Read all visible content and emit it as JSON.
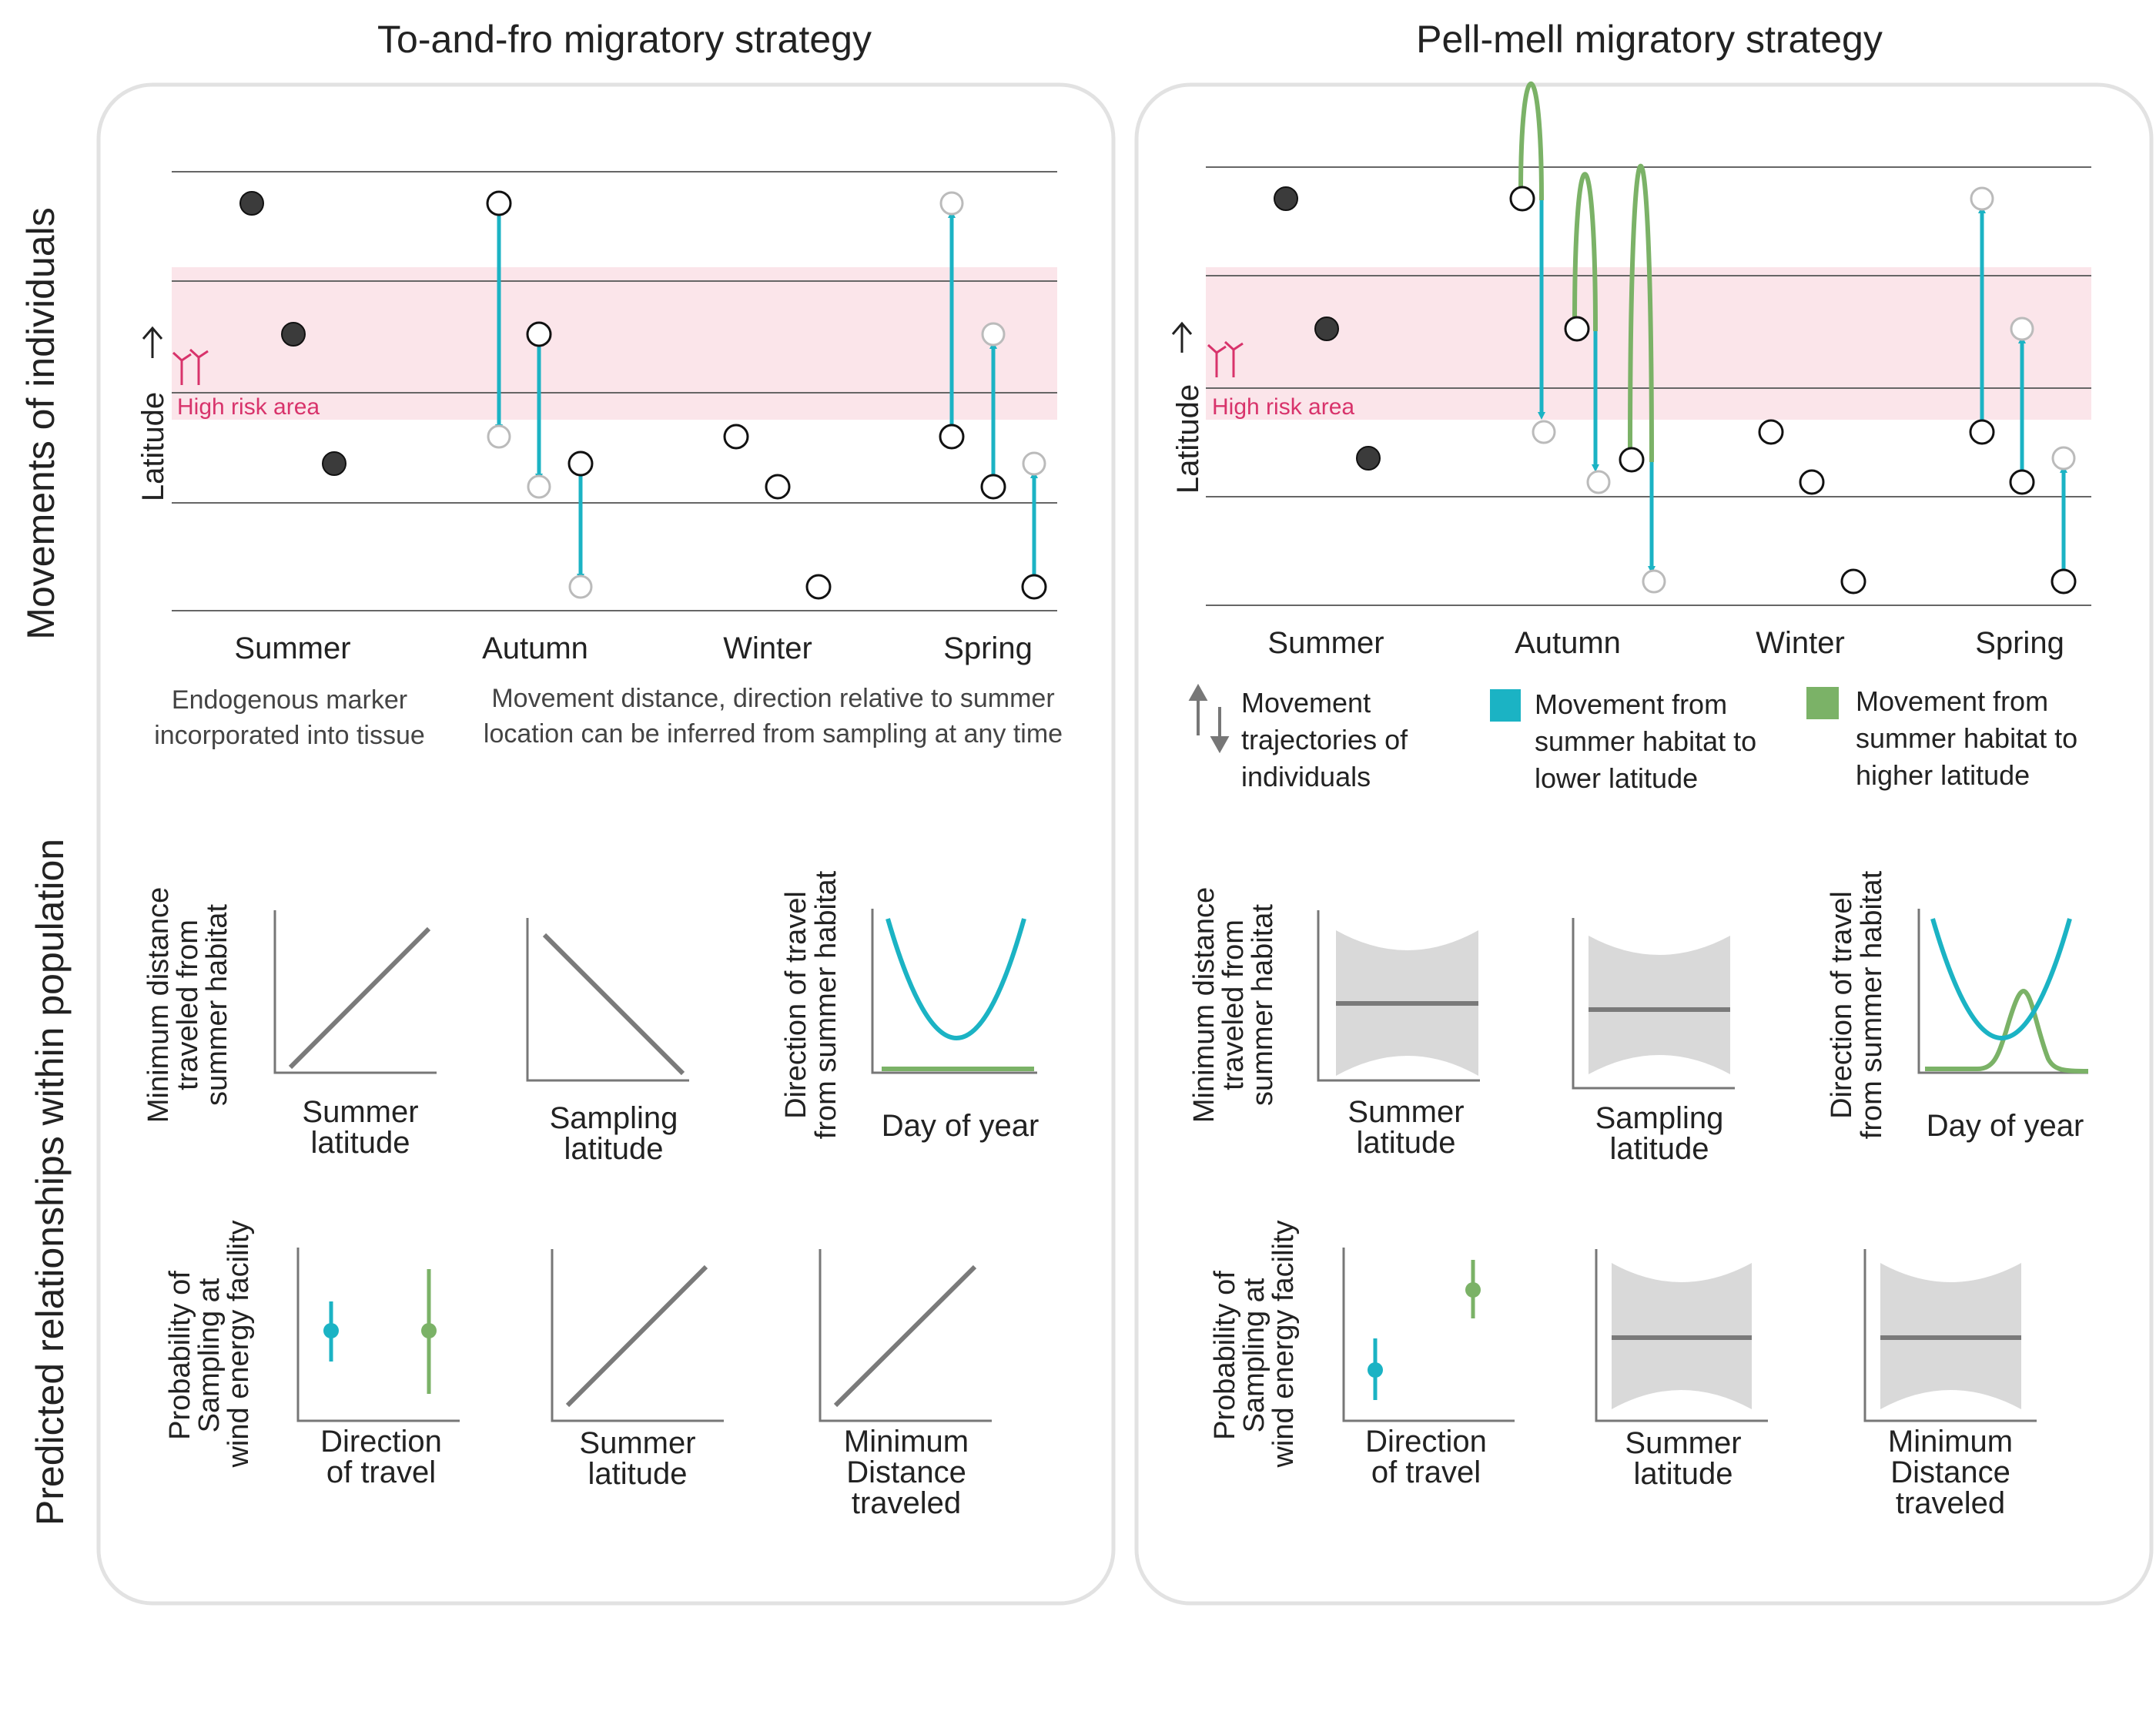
{
  "panel_titles": {
    "left": "To-and-fro migratory strategy",
    "right": "Pell-mell migratory strategy"
  },
  "row_labels": {
    "top": "Movements of individuals",
    "bottom": "Predicted relationships within population"
  },
  "latitude_label": "Latitude",
  "high_risk_label": "High risk area",
  "seasons": [
    "Summer",
    "Autumn",
    "Winter",
    "Spring"
  ],
  "left_notes": {
    "note1_line1": "Endogenous marker",
    "note1_line2": "incorporated into tissue",
    "note2_line1": "Movement distance, direction relative to summer",
    "note2_line2": "location can be inferred from sampling at any time"
  },
  "legend": {
    "traj_line1": "Movement",
    "traj_line2": "trajectories of",
    "traj_line3": "individuals",
    "lower_line1": "Movement from",
    "lower_line2": "summer habitat to",
    "lower_line3": "lower latitude",
    "higher_line1": "Movement from",
    "higher_line2": "summer habitat to",
    "higher_line3": "higher latitude"
  },
  "axis_labels": {
    "min_dist_line1": "Minimum distance",
    "min_dist_line2": "traveled from",
    "min_dist_line3": "summer habitat",
    "summer_lat_line1": "Summer",
    "summer_lat_line2": "latitude",
    "sampling_lat_line1": "Sampling",
    "sampling_lat_line2": "latitude",
    "direction_line1": "Direction of travel",
    "direction_line2": "from summer habitat",
    "day_of_year": "Day of year",
    "prob_line1": "Probability of",
    "prob_line2": "Sampling at",
    "prob_line3": "wind energy facility",
    "dir_travel_line1": "Direction",
    "dir_travel_line2": "of travel",
    "min_distance_line1": "Minimum",
    "min_distance_line2": "Distance",
    "min_distance_line3": "traveled"
  },
  "colors": {
    "lower_latitude": "#1bb3c4",
    "higher_latitude": "#7bb267",
    "high_risk_band": "#fbe5ea",
    "high_risk_text": "#d8336b",
    "trend_line": "#7a7a7a",
    "uncertainty_band": "#d9d9d9",
    "summer_dot": "#3b3b3b"
  },
  "icons": {
    "wind_turbine": "wind-turbine-icon",
    "latitude_arrow": "arrow-up-icon",
    "trajectory_arrows": "up-down-arrows-icon"
  }
}
